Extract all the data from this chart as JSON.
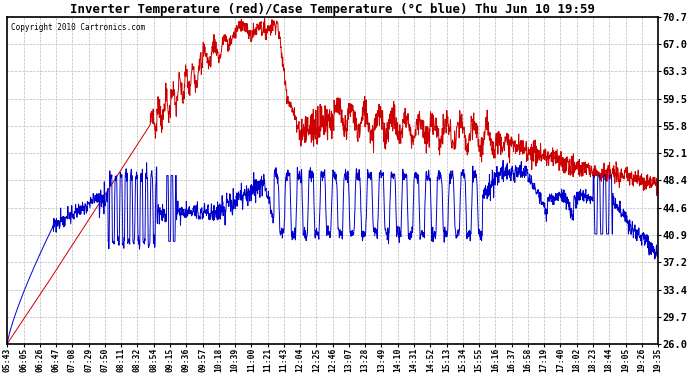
{
  "title": "Inverter Temperature (red)/Case Temperature (°C blue) Thu Jun 10 19:59",
  "copyright": "Copyright 2010 Cartronics.com",
  "yticks": [
    26.0,
    29.7,
    33.4,
    37.2,
    40.9,
    44.6,
    48.4,
    52.1,
    55.8,
    59.5,
    63.3,
    67.0,
    70.7
  ],
  "ylim": [
    26.0,
    70.7
  ],
  "bg_color": "#ffffff",
  "plot_bg_color": "#ffffff",
  "grid_color": "#bbbbbb",
  "red_color": "#cc0000",
  "blue_color": "#0000cc",
  "x_labels": [
    "05:43",
    "06:05",
    "06:26",
    "06:47",
    "07:08",
    "07:29",
    "07:50",
    "08:11",
    "08:32",
    "08:54",
    "09:15",
    "09:36",
    "09:57",
    "10:18",
    "10:39",
    "11:00",
    "11:21",
    "11:43",
    "12:04",
    "12:25",
    "12:46",
    "13:07",
    "13:28",
    "13:49",
    "14:10",
    "14:31",
    "14:52",
    "15:13",
    "15:34",
    "15:55",
    "16:16",
    "16:37",
    "16:58",
    "17:19",
    "17:40",
    "18:02",
    "18:23",
    "18:44",
    "19:05",
    "19:26",
    "19:35"
  ]
}
